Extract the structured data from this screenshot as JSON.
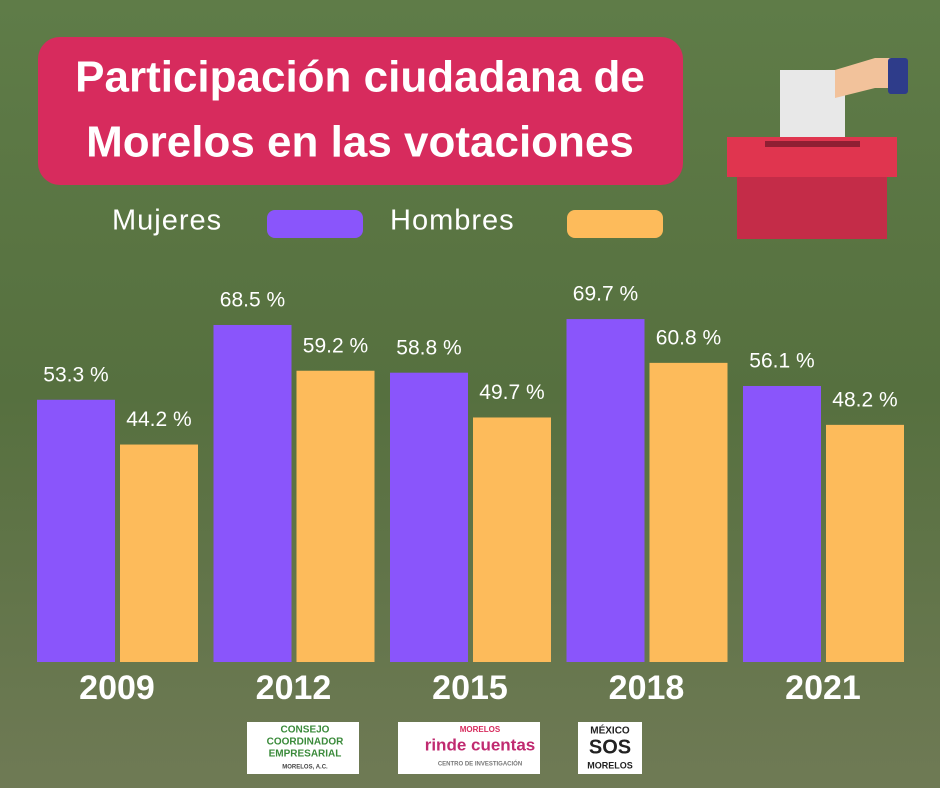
{
  "chart_data": {
    "type": "bar",
    "title": [
      "Participación ciudadana de",
      "Morelos en las votaciones"
    ],
    "categories": [
      "2009",
      "2012",
      "2015",
      "2018",
      "2021"
    ],
    "series": [
      {
        "name": "Mujeres",
        "color": "#8a55fb",
        "values": [
          53.3,
          68.5,
          58.8,
          69.7,
          56.1
        ],
        "value_labels": [
          "53.3 %",
          "68.5 %",
          "58.8 %",
          "69.7 %",
          "56.1 %"
        ]
      },
      {
        "name": "Hombres",
        "color": "#fdbb5b",
        "values": [
          44.2,
          59.2,
          49.7,
          60.8,
          48.2
        ],
        "value_labels": [
          "44.2 %",
          "59.2 %",
          "49.7 %",
          "60.8 %",
          "48.2 %"
        ]
      }
    ]
  },
  "logos": [
    {
      "lines": [
        "CONSEJO",
        "COORDINADOR",
        "EMPRESARIAL",
        "MORELOS, A.C."
      ]
    },
    {
      "lines": [
        "MORELOS",
        "rinde cuentas",
        "CENTRO DE INVESTIGACIÓN"
      ]
    },
    {
      "lines": [
        "MÉXICO",
        "SOS",
        "MORELOS"
      ]
    }
  ]
}
